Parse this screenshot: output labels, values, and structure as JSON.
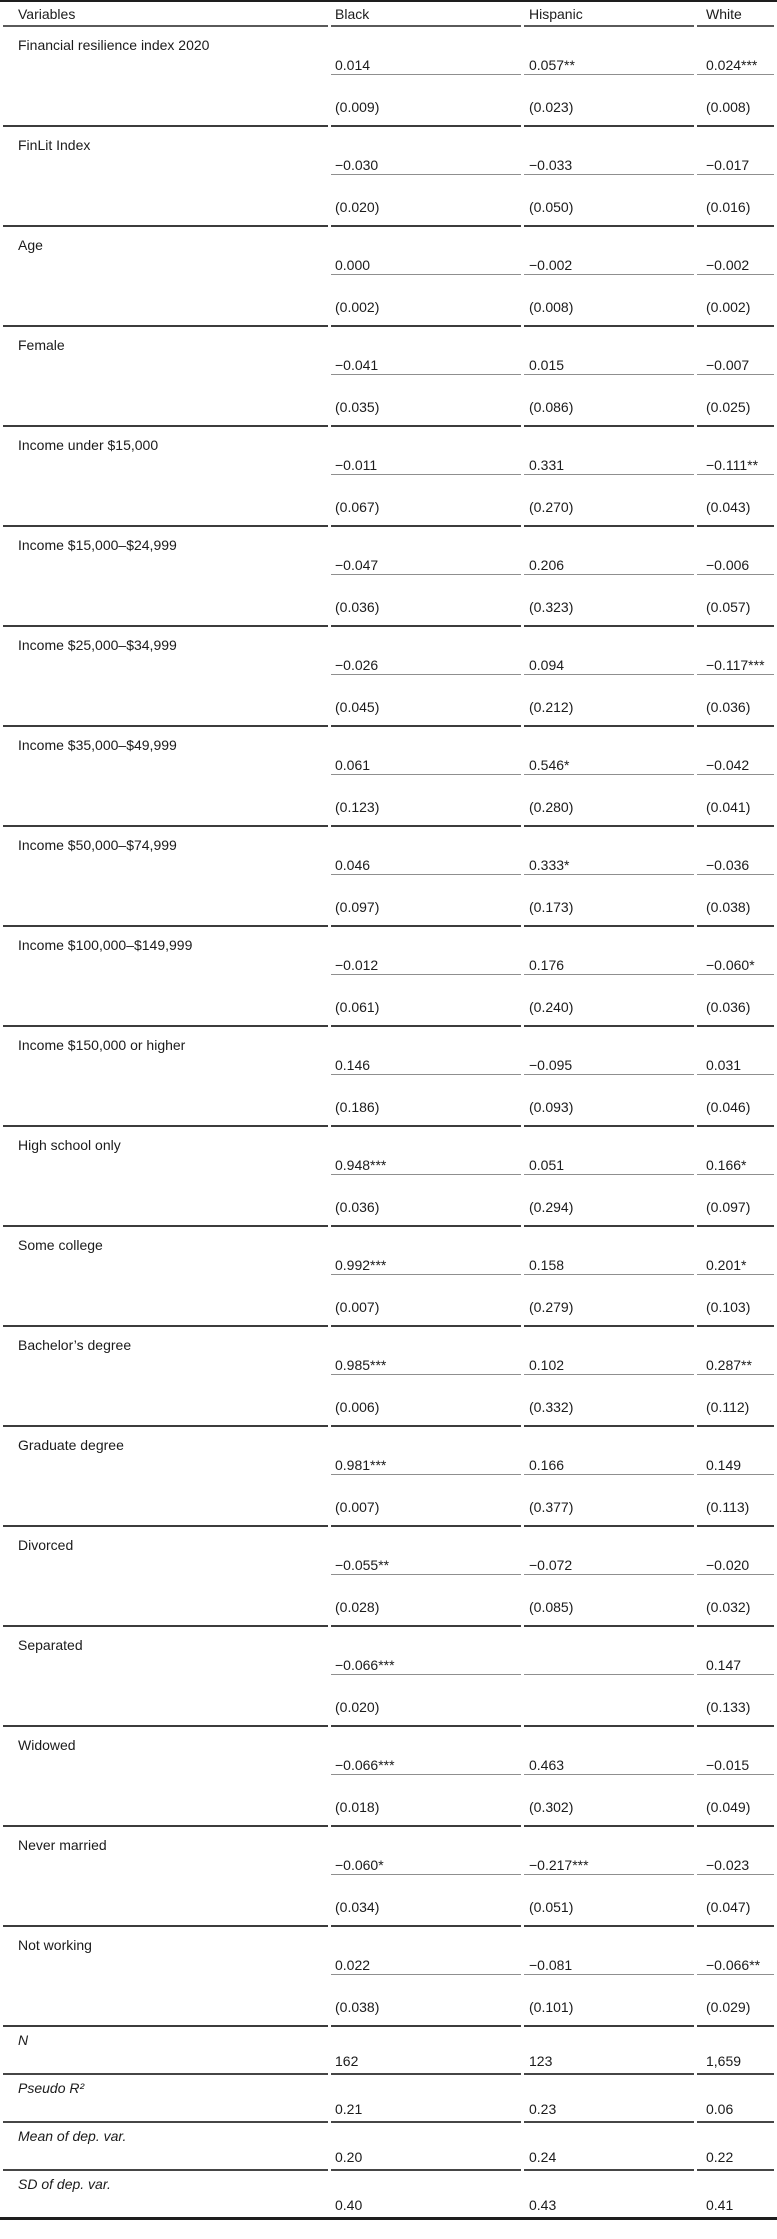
{
  "page": {
    "background": "#ffffff",
    "text_color": "#1b1b1b"
  },
  "table": {
    "columns": [
      {
        "label": "Variables"
      },
      {
        "label": "Black"
      },
      {
        "label": "Hispanic"
      },
      {
        "label": "White"
      }
    ],
    "rows": [
      {
        "variable": "Financial resilience index 2020",
        "coefficients": [
          "0.014",
          "0.057**",
          "0.024***"
        ],
        "std_errors": [
          "(0.009)",
          "(0.023)",
          "(0.008)"
        ]
      },
      {
        "variable": "FinLit Index",
        "coefficients": [
          "−0.030",
          "−0.033",
          "−0.017"
        ],
        "std_errors": [
          "(0.020)",
          "(0.050)",
          "(0.016)"
        ]
      },
      {
        "variable": "Age",
        "coefficients": [
          "0.000",
          "−0.002",
          "−0.002"
        ],
        "std_errors": [
          "(0.002)",
          "(0.008)",
          "(0.002)"
        ]
      },
      {
        "variable": "Female",
        "coefficients": [
          "−0.041",
          "0.015",
          "−0.007"
        ],
        "std_errors": [
          "(0.035)",
          "(0.086)",
          "(0.025)"
        ]
      },
      {
        "variable": "Income under $15,000",
        "coefficients": [
          "−0.011",
          "0.331",
          "−0.111**"
        ],
        "std_errors": [
          "(0.067)",
          "(0.270)",
          "(0.043)"
        ]
      },
      {
        "variable": "Income $15,000–$24,999",
        "coefficients": [
          "−0.047",
          "0.206",
          "−0.006"
        ],
        "std_errors": [
          "(0.036)",
          "(0.323)",
          "(0.057)"
        ]
      },
      {
        "variable": "Income $25,000–$34,999",
        "coefficients": [
          "−0.026",
          "0.094",
          "−0.117***"
        ],
        "std_errors": [
          "(0.045)",
          "(0.212)",
          "(0.036)"
        ]
      },
      {
        "variable": "Income $35,000–$49,999",
        "coefficients": [
          "0.061",
          "0.546*",
          "−0.042"
        ],
        "std_errors": [
          "(0.123)",
          "(0.280)",
          "(0.041)"
        ]
      },
      {
        "variable": "Income $50,000–$74,999",
        "coefficients": [
          "0.046",
          "0.333*",
          "−0.036"
        ],
        "std_errors": [
          "(0.097)",
          "(0.173)",
          "(0.038)"
        ]
      },
      {
        "variable": "Income $100,000–$149,999",
        "coefficients": [
          "−0.012",
          "0.176",
          "−0.060*"
        ],
        "std_errors": [
          "(0.061)",
          "(0.240)",
          "(0.036)"
        ]
      },
      {
        "variable": "Income $150,000 or higher",
        "coefficients": [
          "0.146",
          "−0.095",
          "0.031"
        ],
        "std_errors": [
          "(0.186)",
          "(0.093)",
          "(0.046)"
        ]
      },
      {
        "variable": "High school only",
        "coefficients": [
          "0.948***",
          "0.051",
          "0.166*"
        ],
        "std_errors": [
          "(0.036)",
          "(0.294)",
          "(0.097)"
        ]
      },
      {
        "variable": "Some college",
        "coefficients": [
          "0.992***",
          "0.158",
          "0.201*"
        ],
        "std_errors": [
          "(0.007)",
          "(0.279)",
          "(0.103)"
        ]
      },
      {
        "variable": "Bachelor’s degree",
        "coefficients": [
          "0.985***",
          "0.102",
          "0.287**"
        ],
        "std_errors": [
          "(0.006)",
          "(0.332)",
          "(0.112)"
        ]
      },
      {
        "variable": "Graduate degree",
        "coefficients": [
          "0.981***",
          "0.166",
          "0.149"
        ],
        "std_errors": [
          "(0.007)",
          "(0.377)",
          "(0.113)"
        ]
      },
      {
        "variable": "Divorced",
        "coefficients": [
          "−0.055**",
          "−0.072",
          "−0.020"
        ],
        "std_errors": [
          "(0.028)",
          "(0.085)",
          "(0.032)"
        ]
      },
      {
        "variable": "Separated",
        "coefficients": [
          "−0.066***",
          "",
          "0.147"
        ],
        "std_errors": [
          "(0.020)",
          "",
          "(0.133)"
        ]
      },
      {
        "variable": "Widowed",
        "coefficients": [
          "−0.066***",
          "0.463",
          "−0.015"
        ],
        "std_errors": [
          "(0.018)",
          "(0.302)",
          "(0.049)"
        ]
      },
      {
        "variable": "Never married",
        "coefficients": [
          "−0.060*",
          "−0.217***",
          "−0.023"
        ],
        "std_errors": [
          "(0.034)",
          "(0.051)",
          "(0.047)"
        ]
      },
      {
        "variable": "Not working",
        "coefficients": [
          "0.022",
          "−0.081",
          "−0.066**"
        ],
        "std_errors": [
          "(0.038)",
          "(0.101)",
          "(0.029)"
        ]
      }
    ],
    "summary_rows": [
      {
        "label": "N",
        "values": [
          "162",
          "123",
          "1,659"
        ]
      },
      {
        "label": "Pseudo R²",
        "values": [
          "0.21",
          "0.23",
          "0.06"
        ]
      },
      {
        "label": "Mean of dep. var.",
        "values": [
          "0.20",
          "0.24",
          "0.22"
        ]
      },
      {
        "label": "SD of dep. var.",
        "values": [
          "0.40",
          "0.43",
          "0.41"
        ]
      }
    ]
  }
}
